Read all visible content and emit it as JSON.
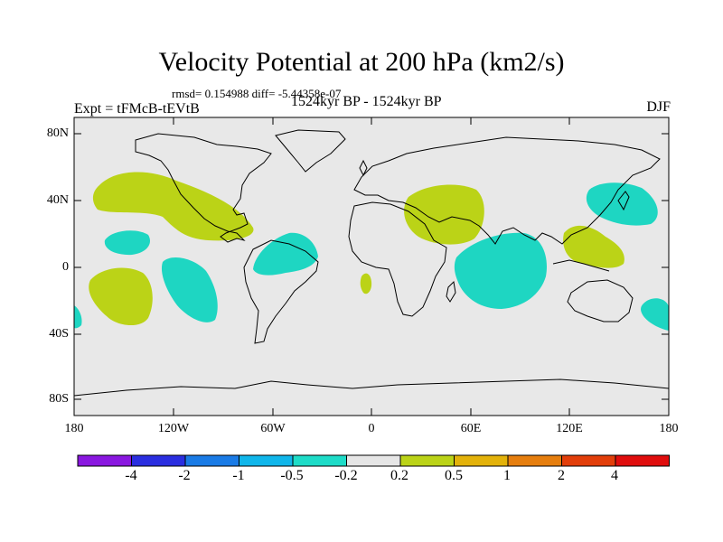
{
  "title": "Velocity Potential at 200 hPa (km2/s)",
  "stats": "rmsd= 0.154988 diff= -5.44358e-07",
  "experiment": "Expt = tFMcB-tEVtB",
  "period": "1524kyr BP - 1524kyr BP",
  "season": "DJF",
  "colors": {
    "ocean_bg": "#e8e8e8",
    "positive_anomaly": "#bbd317",
    "negative_anomaly": "#1ed6c2",
    "coastline": "#000000"
  },
  "map": {
    "lat_labels": [
      "80N",
      "40N",
      "0",
      "40S",
      "80S"
    ],
    "lon_labels": [
      "180",
      "120W",
      "60W",
      "0",
      "60E",
      "120E",
      "180"
    ]
  },
  "colorbar": {
    "labels": [
      "-4",
      "-2",
      "-1",
      "-0.5",
      "-0.2",
      "0.2",
      "0.5",
      "1",
      "2",
      "4"
    ],
    "colors": [
      "#8a17e0",
      "#2a2ee0",
      "#1a7be6",
      "#10b6ea",
      "#1edcc8",
      "#e6e6e6",
      "#bbd317",
      "#e3b20a",
      "#e67e0e",
      "#e23e0a",
      "#e00d0d"
    ]
  }
}
